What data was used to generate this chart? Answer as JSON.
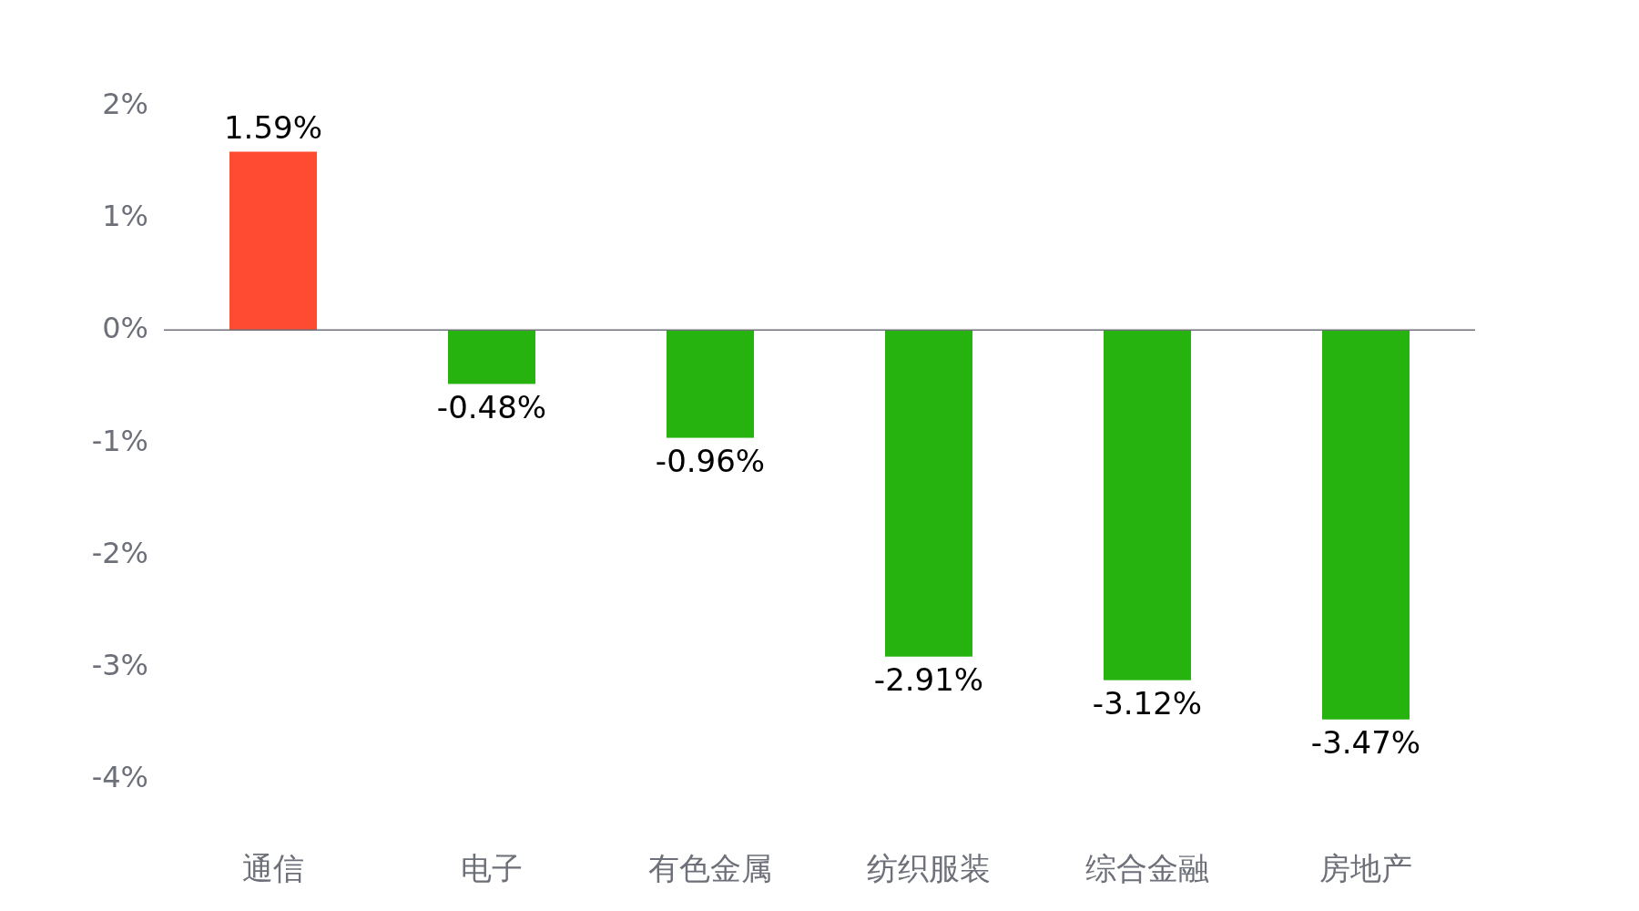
{
  "chart_data": {
    "type": "bar",
    "categories": [
      "通信",
      "电子",
      "有色金属",
      "纺织服装",
      "综合金融",
      "房地产"
    ],
    "values": [
      1.59,
      -0.48,
      -0.96,
      -2.91,
      -3.12,
      -3.47
    ],
    "colors": [
      "#ff4b32",
      "#27b30f",
      "#27b30f",
      "#27b30f",
      "#27b30f",
      "#27b30f"
    ],
    "value_labels": [
      "1.59%",
      "-0.48%",
      "-0.96%",
      "-2.91%",
      "-3.12%",
      "-3.47%"
    ],
    "ylim": [
      -4,
      2
    ],
    "yticks": [
      {
        "value": -4,
        "label": "-4%"
      },
      {
        "value": -3,
        "label": "-3%"
      },
      {
        "value": -2,
        "label": "-2%"
      },
      {
        "value": -1,
        "label": "-1%"
      },
      {
        "value": 0,
        "label": "0%"
      },
      {
        "value": 1,
        "label": "1%"
      },
      {
        "value": 2,
        "label": "2%"
      }
    ],
    "tick_labels": "xy"
  }
}
